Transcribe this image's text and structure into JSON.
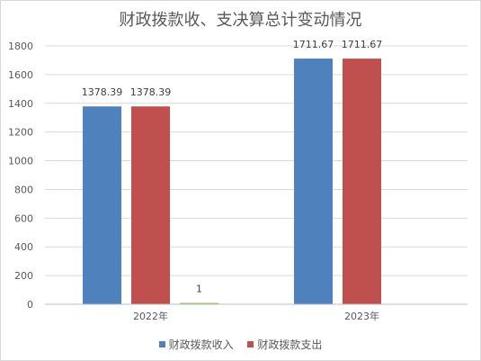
{
  "chart_data": {
    "type": "bar",
    "title": "财政拨款收、支决算总计变动情况",
    "categories": [
      "2022年",
      "2023年"
    ],
    "series": [
      {
        "name": "财政拨款收入",
        "color": "#4f81bd",
        "values": [
          1378.39,
          1711.67
        ],
        "labels": [
          "1378.39",
          "1711.67"
        ]
      },
      {
        "name": "财政拨款支出",
        "color": "#c0504d",
        "values": [
          1378.39,
          1711.67
        ],
        "labels": [
          "1378.39",
          "1711.67"
        ]
      },
      {
        "name": "",
        "color": "#9bbb59",
        "values": [
          1,
          null
        ],
        "labels": [
          "1",
          ""
        ]
      }
    ],
    "ylim": [
      0,
      1800
    ],
    "yticks": [
      0,
      200,
      400,
      600,
      800,
      1000,
      1200,
      1400,
      1600,
      1800
    ],
    "grid": true,
    "legend_position": "bottom"
  }
}
